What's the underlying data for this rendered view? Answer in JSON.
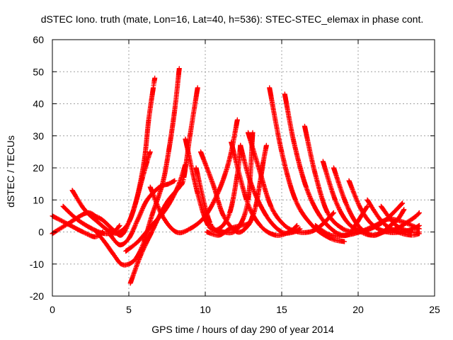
{
  "chart_data": {
    "type": "scatter",
    "title": "dSTEC Iono. truth (mate, Lon=16, Lat=40, h=536): STEC-STEC_elemax in phase cont.",
    "xlabel": "GPS time / hours of day 290 of year 2014",
    "ylabel": "dSTEC  / TECUs",
    "xlim": [
      0,
      25
    ],
    "ylim": [
      -20,
      60
    ],
    "x_ticks": [
      0,
      5,
      10,
      15,
      20,
      25
    ],
    "y_ticks": [
      -20,
      -10,
      0,
      10,
      20,
      30,
      40,
      50,
      60
    ],
    "grid": true,
    "marker": "+",
    "colors": {
      "series": "#ff0000",
      "grid": "#a0a0a0",
      "axes": "#000000"
    },
    "series": [
      {
        "x": [
          0.0,
          1.0,
          2.0,
          2.8,
          3.3
        ],
        "y": [
          5,
          2.5,
          0,
          -1.5,
          0
        ]
      },
      {
        "x": [
          0.0,
          1.0,
          2.3,
          3.0
        ],
        "y": [
          -0.5,
          2.5,
          6,
          4
        ]
      },
      {
        "x": [
          0.7,
          1.6,
          2.6,
          3.4,
          4.0,
          4.4
        ],
        "y": [
          8,
          4,
          1,
          -0.5,
          0,
          2
        ]
      },
      {
        "x": [
          1.3,
          2.1,
          3.0,
          3.8,
          4.4,
          5.0,
          5.5,
          5.9,
          6.2,
          6.4
        ],
        "y": [
          13,
          7,
          3,
          0,
          0,
          3,
          10,
          17,
          22,
          25
        ]
      },
      {
        "x": [
          2.3,
          3.2,
          3.9,
          4.5,
          5.0,
          5.5,
          6.0,
          6.3,
          6.6,
          6.7
        ],
        "y": [
          6,
          4,
          1,
          -1,
          3,
          10,
          22,
          35,
          45,
          48
        ]
      },
      {
        "x": [
          2.8,
          3.4,
          4.0,
          4.5,
          5.0,
          5.5,
          6.0,
          6.5,
          7.2,
          7.6,
          8.0,
          8.3
        ],
        "y": [
          0.5,
          -3,
          -7,
          -10,
          -10,
          -8,
          -3,
          5,
          15,
          25,
          38,
          51
        ]
      },
      {
        "x": [
          3.8,
          4.4,
          5.0,
          5.6,
          6.2,
          7.0,
          7.6,
          8.0
        ],
        "y": [
          -1,
          -4,
          -2,
          4,
          10,
          14,
          15,
          16
        ]
      },
      {
        "x": [
          5.1,
          5.8,
          6.5,
          7.0,
          7.6,
          8.3,
          8.6,
          9.0,
          9.5
        ],
        "y": [
          -16,
          -7,
          0,
          5,
          10,
          14,
          17,
          30,
          45
        ]
      },
      {
        "x": [
          4.8,
          5.6,
          6.5,
          7.4,
          8.2,
          8.7
        ],
        "y": [
          -6,
          -3,
          2,
          7,
          14,
          21
        ]
      },
      {
        "x": [
          6.4,
          7.2,
          8.1,
          9.0,
          10.0,
          10.9,
          11.6,
          12.1
        ],
        "y": [
          14,
          5,
          0,
          1,
          5,
          13,
          23,
          35
        ]
      },
      {
        "x": [
          8.7,
          9.5,
          10.2,
          10.9,
          11.6,
          12.1,
          12.3
        ],
        "y": [
          29,
          12,
          2,
          1,
          6,
          18,
          27
        ]
      },
      {
        "x": [
          9.4,
          10.3,
          11.2,
          12.1,
          12.8,
          13.1
        ],
        "y": [
          20,
          3,
          0,
          1,
          10,
          31
        ]
      },
      {
        "x": [
          10.1,
          10.9,
          11.6,
          12.3,
          12.9,
          13.3,
          13.6,
          13.8,
          14.0
        ],
        "y": [
          0,
          -1,
          1,
          2,
          3,
          8,
          16,
          22,
          27
        ]
      },
      {
        "x": [
          9.7,
          10.5,
          11.2,
          12.1,
          12.8,
          13.1
        ],
        "y": [
          25,
          15,
          5,
          0,
          2,
          5
        ]
      },
      {
        "x": [
          11.7,
          12.7,
          13.6,
          14.6,
          15.5,
          16.0
        ],
        "y": [
          28,
          10,
          2,
          -1,
          0,
          2
        ]
      },
      {
        "x": [
          12.3,
          13.0,
          14.0,
          15.0,
          15.8,
          16.2
        ],
        "y": [
          27,
          15,
          5,
          0,
          0,
          1
        ]
      },
      {
        "x": [
          12.8,
          13.5,
          14.3,
          15.2,
          16.1,
          16.8,
          17.3,
          17.8,
          18.4
        ],
        "y": [
          31,
          20,
          8,
          2,
          0,
          0,
          1,
          3,
          6
        ]
      },
      {
        "x": [
          14.2,
          15.0,
          15.9,
          17.0,
          18.2,
          19.1
        ],
        "y": [
          45,
          25,
          10,
          2,
          -2,
          -3
        ]
      },
      {
        "x": [
          15.2,
          15.8,
          16.6,
          17.5,
          18.5,
          19.3,
          19.8,
          20.2,
          20.6
        ],
        "y": [
          43,
          28,
          14,
          5,
          0,
          -1,
          2,
          5,
          8
        ]
      },
      {
        "x": [
          16.5,
          17.2,
          18.0,
          19.0,
          20.0,
          20.8,
          21.6,
          22.3,
          22.9
        ],
        "y": [
          33,
          18,
          6,
          1,
          0,
          1,
          3,
          6,
          9
        ]
      },
      {
        "x": [
          17.7,
          18.5,
          19.3,
          20.2,
          20.9,
          21.6,
          22.1,
          22.6,
          23.0
        ],
        "y": [
          22,
          10,
          3,
          0,
          -1,
          0,
          2,
          4,
          7
        ]
      },
      {
        "x": [
          18.4,
          19.2,
          20.0,
          20.9,
          21.7,
          22.5,
          23.2,
          23.8,
          24.0
        ],
        "y": [
          20,
          9,
          2,
          -1,
          0,
          1,
          3,
          5,
          6
        ]
      },
      {
        "x": [
          19.4,
          20.2,
          21.0,
          21.9,
          22.8,
          23.6,
          24.0
        ],
        "y": [
          16,
          7,
          2,
          0,
          0,
          1,
          2
        ]
      },
      {
        "x": [
          20.6,
          21.6,
          22.6,
          23.5,
          24.0
        ],
        "y": [
          10,
          3,
          0,
          -1,
          -0.5
        ]
      },
      {
        "x": [
          21.5,
          22.5,
          23.5,
          24.0
        ],
        "y": [
          8,
          2,
          0,
          0
        ]
      },
      {
        "x": [
          17.2,
          18.2,
          19.2,
          20.1,
          21.1,
          22.0,
          23.0,
          24.0
        ],
        "y": [
          2,
          -1,
          -1,
          0,
          2,
          4,
          3,
          1
        ]
      }
    ]
  }
}
